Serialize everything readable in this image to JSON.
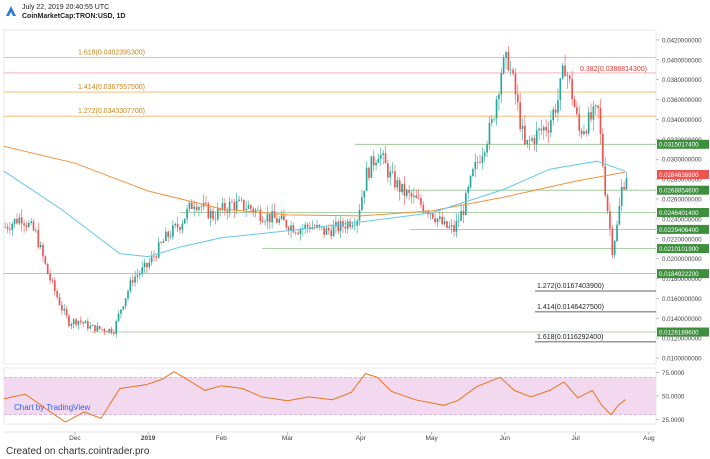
{
  "header": {
    "timestamp": "July 22, 2019 20:40:55 UTC",
    "symbol": "CoinMarketCap:TRON:USD, 1D"
  },
  "footer": {
    "text": "Created on charts.cointrader.pro"
  },
  "watermark": {
    "text": "Chart by TradingView"
  },
  "colors": {
    "up": "#26a69a",
    "down": "#ef5350",
    "ema_long": "#f0923c",
    "ema_short": "#62c9e8",
    "fib_line": "#f2b56b",
    "support_line": "#8fc48a",
    "rsi_line": "#e8741c",
    "rsi_band": "#f3d9f0",
    "price_label": "#ef5350",
    "support_label": "#3d8f3d"
  },
  "chart_data": [
    {
      "type": "candlestick",
      "title": "",
      "ylim": [
        0.0094,
        0.043
      ],
      "y_ticks": [
        "0.0420000000",
        "0.0400000000",
        "0.0380000000",
        "0.0360000000",
        "0.0340000000",
        "0.0320000000",
        "0.0300000000",
        "0.0280000000",
        "0.0260000000",
        "0.0240000000",
        "0.0220000000",
        "0.0200000000",
        "0.0180000000",
        "0.0160000000",
        "0.0140000000",
        "0.0120000000",
        "0.0100000000"
      ],
      "y_tick_values": [
        0.042,
        0.04,
        0.038,
        0.036,
        0.034,
        0.032,
        0.03,
        0.028,
        0.026,
        0.024,
        0.022,
        0.02,
        0.018,
        0.016,
        0.014,
        0.012,
        0.01
      ],
      "x_tick_labels": [
        "Dec",
        "2019",
        "Feb",
        "Mar",
        "Apr",
        "May",
        "Jun",
        "Jul",
        "Aug"
      ],
      "x_tick_dates": [
        "2018-12-01",
        "2019-01-01",
        "2019-02-01",
        "2019-03-01",
        "2019-04-01",
        "2019-05-01",
        "2019-06-01",
        "2019-07-01",
        "2019-08-01"
      ],
      "x_range": [
        "2018-11-01",
        "2019-08-04"
      ],
      "price_path": [
        [
          "2018-11-01",
          0.0232
        ],
        [
          "2018-11-08",
          0.0242
        ],
        [
          "2018-11-14",
          0.0225
        ],
        [
          "2018-11-19",
          0.0185
        ],
        [
          "2018-11-25",
          0.015
        ],
        [
          "2018-11-28",
          0.0136
        ],
        [
          "2018-12-02",
          0.0138
        ],
        [
          "2018-12-07",
          0.0131
        ],
        [
          "2018-12-12",
          0.0129
        ],
        [
          "2018-12-17",
          0.0128
        ],
        [
          "2018-12-20",
          0.015
        ],
        [
          "2018-12-25",
          0.018
        ],
        [
          "2018-12-31",
          0.0192
        ],
        [
          "2019-01-08",
          0.0221
        ],
        [
          "2019-01-14",
          0.0235
        ],
        [
          "2019-01-20",
          0.0258
        ],
        [
          "2019-01-28",
          0.0243
        ],
        [
          "2019-02-05",
          0.0255
        ],
        [
          "2019-02-12",
          0.0252
        ],
        [
          "2019-02-18",
          0.0244
        ],
        [
          "2019-02-25",
          0.0238
        ],
        [
          "2019-03-05",
          0.023
        ],
        [
          "2019-03-10",
          0.0233
        ],
        [
          "2019-03-16",
          0.0227
        ],
        [
          "2019-03-23",
          0.0232
        ],
        [
          "2019-03-30",
          0.0242
        ],
        [
          "2019-04-03",
          0.0285
        ],
        [
          "2019-04-08",
          0.0308
        ],
        [
          "2019-04-13",
          0.0283
        ],
        [
          "2019-04-18",
          0.0268
        ],
        [
          "2019-04-24",
          0.0258
        ],
        [
          "2019-04-30",
          0.0248
        ],
        [
          "2019-05-06",
          0.0232
        ],
        [
          "2019-05-10",
          0.0229
        ],
        [
          "2019-05-14",
          0.025
        ],
        [
          "2019-05-18",
          0.0285
        ],
        [
          "2019-05-22",
          0.031
        ],
        [
          "2019-05-26",
          0.0335
        ],
        [
          "2019-05-30",
          0.039
        ],
        [
          "2019-06-02",
          0.04
        ],
        [
          "2019-06-05",
          0.0365
        ],
        [
          "2019-06-09",
          0.0312
        ],
        [
          "2019-06-14",
          0.0325
        ],
        [
          "2019-06-19",
          0.0335
        ],
        [
          "2019-06-23",
          0.036
        ],
        [
          "2019-06-26",
          0.0395
        ],
        [
          "2019-06-29",
          0.0365
        ],
        [
          "2019-07-02",
          0.0328
        ],
        [
          "2019-07-06",
          0.0338
        ],
        [
          "2019-07-10",
          0.0348
        ],
        [
          "2019-07-13",
          0.027
        ],
        [
          "2019-07-16",
          0.021
        ],
        [
          "2019-07-18",
          0.0232
        ],
        [
          "2019-07-20",
          0.027
        ],
        [
          "2019-07-22",
          0.0285
        ]
      ],
      "series": [
        {
          "role": "ema_long",
          "points": [
            [
              "2018-11-01",
              0.0313
            ],
            [
              "2018-12-01",
              0.0296
            ],
            [
              "2019-01-01",
              0.0268
            ],
            [
              "2019-02-01",
              0.025
            ],
            [
              "2019-03-01",
              0.0244
            ],
            [
              "2019-04-01",
              0.0243
            ],
            [
              "2019-05-01",
              0.0248
            ],
            [
              "2019-06-01",
              0.0262
            ],
            [
              "2019-07-01",
              0.0278
            ],
            [
              "2019-07-22",
              0.0287
            ]
          ]
        },
        {
          "role": "ema_short",
          "points": [
            [
              "2018-11-01",
              0.0288
            ],
            [
              "2018-11-25",
              0.025
            ],
            [
              "2018-12-20",
              0.0205
            ],
            [
              "2019-01-01",
              0.0202
            ],
            [
              "2019-01-15",
              0.0212
            ],
            [
              "2019-02-01",
              0.0221
            ],
            [
              "2019-03-01",
              0.0228
            ],
            [
              "2019-04-01",
              0.0237
            ],
            [
              "2019-05-01",
              0.0246
            ],
            [
              "2019-06-01",
              0.027
            ],
            [
              "2019-06-20",
              0.029
            ],
            [
              "2019-07-10",
              0.0298
            ],
            [
              "2019-07-22",
              0.0288
            ]
          ]
        }
      ],
      "fib_levels": [
        {
          "label": "1.618(0.0402395300)",
          "value": 0.04023953,
          "side": "left"
        },
        {
          "label": "1.414(0.0367557500)",
          "value": 0.03675575,
          "side": "left"
        },
        {
          "label": "1.272(0.0343307700)",
          "value": 0.03433077,
          "side": "left"
        },
        {
          "label": "1.272(0.0167403900)",
          "value": 0.01674039,
          "side": "right"
        },
        {
          "label": "1.414(0.0146427500)",
          "value": 0.01464275,
          "side": "right"
        },
        {
          "label": "1.618(0.0116292400)",
          "value": 0.01162924,
          "side": "right"
        }
      ],
      "resistance": {
        "label": "0.382(0.0386814300)",
        "value": 0.03868143
      },
      "price_labels": [
        {
          "text": "0.0315017400",
          "value": 0.03150174,
          "kind": "support"
        },
        {
          "text": "0.0284636800",
          "value": 0.02846368,
          "kind": "price"
        },
        {
          "text": "0.0268854600",
          "value": 0.02688546,
          "kind": "support"
        },
        {
          "text": "0.0246401400",
          "value": 0.02464014,
          "kind": "support"
        },
        {
          "text": "0.0229406400",
          "value": 0.02294064,
          "kind": "support"
        },
        {
          "text": "0.0210101900",
          "value": 0.02101019,
          "kind": "support"
        },
        {
          "text": "0.0184922200",
          "value": 0.01849222,
          "kind": "support"
        },
        {
          "text": "0.0126169600",
          "value": 0.01261696,
          "kind": "support"
        }
      ]
    },
    {
      "type": "line",
      "title": "",
      "role": "rsi",
      "ylim": [
        20,
        80
      ],
      "y_ticks": [
        "75.0000",
        "50.0000",
        "25.0000"
      ],
      "y_tick_values": [
        75,
        50,
        25
      ],
      "band": [
        30,
        70
      ],
      "points": [
        [
          "2018-11-01",
          47
        ],
        [
          "2018-11-10",
          52
        ],
        [
          "2018-11-20",
          34
        ],
        [
          "2018-11-27",
          22
        ],
        [
          "2018-12-05",
          33
        ],
        [
          "2018-12-12",
          26
        ],
        [
          "2018-12-20",
          58
        ],
        [
          "2018-12-31",
          62
        ],
        [
          "2019-01-07",
          68
        ],
        [
          "2019-01-12",
          76
        ],
        [
          "2019-01-18",
          67
        ],
        [
          "2019-01-25",
          56
        ],
        [
          "2019-02-01",
          61
        ],
        [
          "2019-02-10",
          58
        ],
        [
          "2019-02-18",
          49
        ],
        [
          "2019-03-01",
          45
        ],
        [
          "2019-03-10",
          49
        ],
        [
          "2019-03-20",
          46
        ],
        [
          "2019-03-28",
          54
        ],
        [
          "2019-04-03",
          74
        ],
        [
          "2019-04-08",
          70
        ],
        [
          "2019-04-14",
          55
        ],
        [
          "2019-04-24",
          46
        ],
        [
          "2019-05-06",
          40
        ],
        [
          "2019-05-12",
          45
        ],
        [
          "2019-05-20",
          60
        ],
        [
          "2019-05-30",
          70
        ],
        [
          "2019-06-05",
          56
        ],
        [
          "2019-06-12",
          49
        ],
        [
          "2019-06-20",
          56
        ],
        [
          "2019-06-26",
          65
        ],
        [
          "2019-07-02",
          48
        ],
        [
          "2019-07-08",
          56
        ],
        [
          "2019-07-12",
          40
        ],
        [
          "2019-07-16",
          30
        ],
        [
          "2019-07-19",
          40
        ],
        [
          "2019-07-22",
          46
        ]
      ]
    }
  ]
}
